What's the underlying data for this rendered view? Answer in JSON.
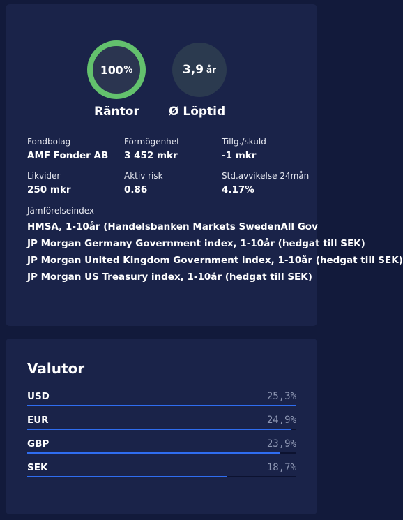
{
  "metrics": [
    {
      "value": "100",
      "unit": "%",
      "label": "Räntor",
      "ring_color": "#63c16d",
      "fill_fraction": 1.0
    },
    {
      "value": "3,9",
      "unit": "år",
      "label": "Ø Löptid"
    }
  ],
  "facts": [
    {
      "label": "Fondbolag",
      "value": "AMF Fonder AB"
    },
    {
      "label": "Förmögenhet",
      "value": "3 452 mkr"
    },
    {
      "label": "Tillg./skuld",
      "value": "-1 mkr"
    },
    {
      "label": "Likvider",
      "value": "250 mkr"
    },
    {
      "label": "Aktiv risk",
      "value": "0.86"
    },
    {
      "label": "Std.avvikelse 24mån",
      "value": "4.17%"
    }
  ],
  "index": {
    "title": "Jämförelseindex",
    "items": [
      "HMSA, 1-10år (Handelsbanken Markets SwedenAll Gov",
      "JP Morgan Germany Government index, 1-10år (hedgat till SEK)",
      "JP Morgan United Kingdom Government index, 1-10år (hedgat till SEK)",
      "JP Morgan US Treasury index, 1-10år (hedgat till SEK)"
    ]
  },
  "valutor": {
    "title": "Valutor",
    "bar_color": "#2f6df0",
    "rows": [
      {
        "code": "USD",
        "pct_text": "25,3%",
        "fill_fraction": 1.0
      },
      {
        "code": "EUR",
        "pct_text": "24,9%",
        "fill_fraction": 0.98
      },
      {
        "code": "GBP",
        "pct_text": "23,9%",
        "fill_fraction": 0.94
      },
      {
        "code": "SEK",
        "pct_text": "18,7%",
        "fill_fraction": 0.74
      }
    ]
  }
}
